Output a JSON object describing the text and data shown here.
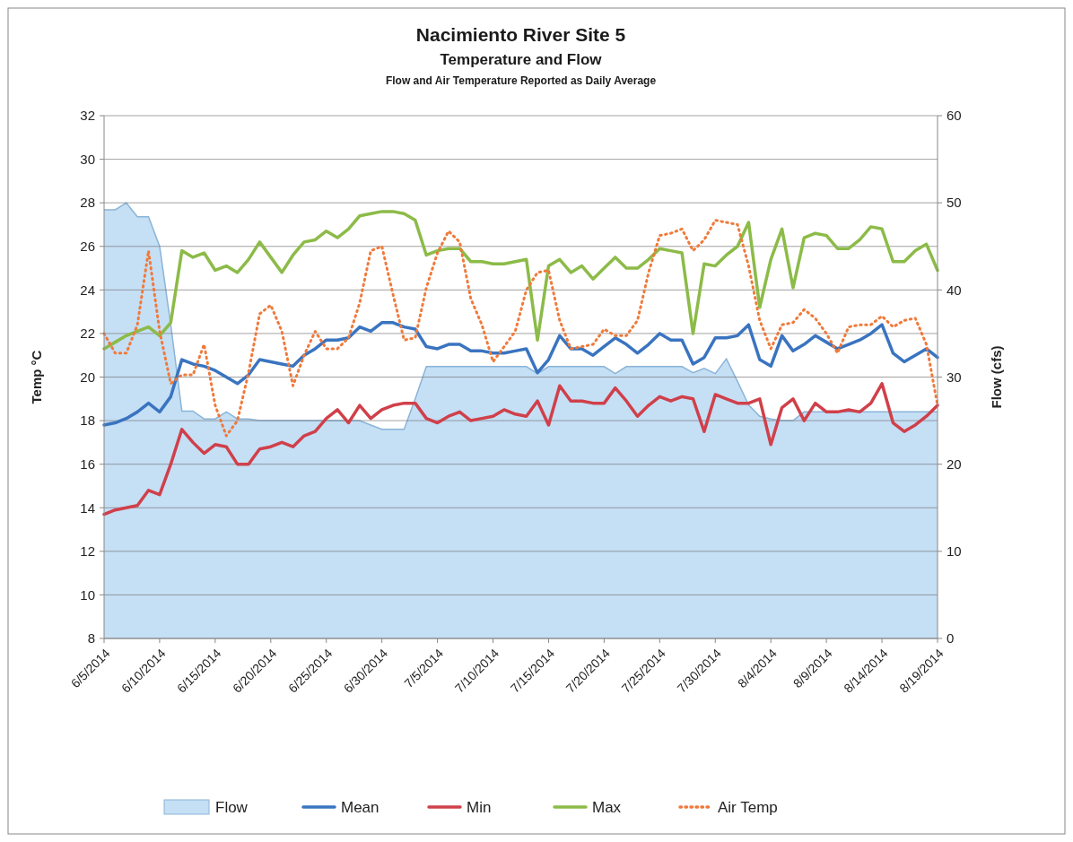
{
  "chart_data": {
    "type": "line",
    "title": "Nacimiento River Site 5",
    "subtitle": "Temperature and Flow",
    "annotations": [
      "Flow and Air Temperature Reported as Daily Average"
    ],
    "ylabel": "Temp °C",
    "y2label": "Flow (cfs)",
    "x": [
      "2014-06-05",
      "2014-06-06",
      "2014-06-07",
      "2014-06-08",
      "2014-06-09",
      "2014-06-10",
      "2014-06-11",
      "2014-06-12",
      "2014-06-13",
      "2014-06-14",
      "2014-06-15",
      "2014-06-16",
      "2014-06-17",
      "2014-06-18",
      "2014-06-19",
      "2014-06-20",
      "2014-06-21",
      "2014-06-22",
      "2014-06-23",
      "2014-06-24",
      "2014-06-25",
      "2014-06-26",
      "2014-06-27",
      "2014-06-28",
      "2014-06-29",
      "2014-06-30",
      "2014-07-01",
      "2014-07-02",
      "2014-07-03",
      "2014-07-04",
      "2014-07-05",
      "2014-07-06",
      "2014-07-07",
      "2014-07-08",
      "2014-07-09",
      "2014-07-10",
      "2014-07-11",
      "2014-07-12",
      "2014-07-13",
      "2014-07-14",
      "2014-07-15",
      "2014-07-16",
      "2014-07-17",
      "2014-07-18",
      "2014-07-19",
      "2014-07-20",
      "2014-07-21",
      "2014-07-22",
      "2014-07-23",
      "2014-07-24",
      "2014-07-25",
      "2014-07-26",
      "2014-07-27",
      "2014-07-28",
      "2014-07-29",
      "2014-07-30",
      "2014-07-31",
      "2014-08-01",
      "2014-08-02",
      "2014-08-03",
      "2014-08-04",
      "2014-08-05",
      "2014-08-06",
      "2014-08-07",
      "2014-08-08",
      "2014-08-09",
      "2014-08-10",
      "2014-08-11",
      "2014-08-12",
      "2014-08-13",
      "2014-08-14",
      "2014-08-15",
      "2014-08-16",
      "2014-08-17",
      "2014-08-18",
      "2014-08-19"
    ],
    "series": [
      {
        "name": "Flow",
        "type": "area",
        "axis": "y2",
        "color": "#c5dff5",
        "values": [
          49.2,
          49.2,
          50,
          48.4,
          48.4,
          45,
          36,
          26.1,
          26.1,
          25.2,
          25.2,
          26,
          25.2,
          25.2,
          25,
          25,
          25,
          25,
          25,
          25,
          25,
          25,
          25,
          25,
          24.5,
          24,
          24,
          24,
          27.5,
          31.2,
          31.2,
          31.2,
          31.2,
          31.2,
          31.2,
          31.2,
          31.2,
          31.2,
          31.2,
          30.4,
          31.2,
          31.2,
          31.2,
          31.2,
          31.2,
          31.2,
          30.4,
          31.2,
          31.2,
          31.2,
          31.2,
          31.2,
          31.2,
          30.5,
          31,
          30.4,
          32.1,
          29.5,
          26.8,
          25.5,
          25.2,
          25,
          25,
          26,
          26,
          26,
          26,
          26,
          26,
          26,
          26,
          26,
          26,
          26,
          26,
          26
        ]
      },
      {
        "name": "Mean",
        "color": "#3a74c0",
        "values": [
          17.8,
          17.9,
          18.1,
          18.4,
          18.8,
          18.4,
          19.1,
          20.8,
          20.6,
          20.5,
          20.3,
          20,
          19.7,
          20.1,
          20.8,
          20.7,
          20.6,
          20.5,
          21,
          21.3,
          21.7,
          21.7,
          21.8,
          22.3,
          22.1,
          22.5,
          22.5,
          22.3,
          22.2,
          21.4,
          21.3,
          21.5,
          21.5,
          21.2,
          21.2,
          21.1,
          21.1,
          21.2,
          21.3,
          20.2,
          20.8,
          21.9,
          21.3,
          21.3,
          21,
          21.4,
          21.8,
          21.5,
          21.1,
          21.5,
          22,
          21.7,
          21.7,
          20.6,
          20.9,
          21.8,
          21.8,
          21.9,
          22.4,
          20.8,
          20.5,
          21.9,
          21.2,
          21.5,
          21.9,
          21.6,
          21.3,
          21.5,
          21.7,
          22,
          22.4,
          21.1,
          20.7,
          21,
          21.3,
          20.9
        ]
      },
      {
        "name": "Min",
        "color": "#d0404a",
        "values": [
          13.7,
          13.9,
          14,
          14.1,
          14.8,
          14.6,
          16,
          17.6,
          17,
          16.5,
          16.9,
          16.8,
          16,
          16,
          16.7,
          16.8,
          17,
          16.8,
          17.3,
          17.5,
          18.1,
          18.5,
          17.9,
          18.7,
          18.1,
          18.5,
          18.7,
          18.8,
          18.8,
          18.1,
          17.9,
          18.2,
          18.4,
          18,
          18.1,
          18.2,
          18.5,
          18.3,
          18.2,
          18.9,
          17.8,
          19.6,
          18.9,
          18.9,
          18.8,
          18.8,
          19.5,
          18.9,
          18.2,
          18.7,
          19.1,
          18.9,
          19.1,
          19,
          17.5,
          19.2,
          19,
          18.8,
          18.8,
          19,
          16.9,
          18.6,
          19,
          18,
          18.8,
          18.4,
          18.4,
          18.5,
          18.4,
          18.8,
          19.7,
          17.9,
          17.5,
          17.8,
          18.2,
          18.7
        ]
      },
      {
        "name": "Max",
        "color": "#8cbb48",
        "values": [
          21.3,
          21.6,
          21.9,
          22.1,
          22.3,
          21.9,
          22.5,
          25.8,
          25.5,
          25.7,
          24.9,
          25.1,
          24.8,
          25.4,
          26.2,
          25.5,
          24.8,
          25.6,
          26.2,
          26.3,
          26.7,
          26.4,
          26.8,
          27.4,
          27.5,
          27.6,
          27.6,
          27.5,
          27.2,
          25.6,
          25.8,
          25.9,
          25.9,
          25.3,
          25.3,
          25.2,
          25.2,
          25.3,
          25.4,
          21.7,
          25.1,
          25.4,
          24.8,
          25.1,
          24.5,
          25,
          25.5,
          25,
          25,
          25.4,
          25.9,
          25.8,
          25.7,
          22,
          25.2,
          25.1,
          25.6,
          26,
          27.1,
          23.2,
          25.4,
          26.8,
          24.1,
          26.4,
          26.6,
          26.5,
          25.9,
          25.9,
          26.3,
          26.9,
          26.8,
          25.3,
          25.3,
          25.8,
          26.1,
          24.9
        ]
      },
      {
        "name": "Air Temp",
        "color": "#f07a3a",
        "line_style": "dotted",
        "values": [
          22,
          21.1,
          21.1,
          22.4,
          25.8,
          22.1,
          19.7,
          20.1,
          20.1,
          21.5,
          18.7,
          17.3,
          18,
          20.2,
          22.9,
          23.3,
          22.1,
          19.6,
          21,
          22.1,
          21.3,
          21.3,
          21.8,
          23.4,
          25.8,
          26,
          23.8,
          21.7,
          21.8,
          24.1,
          25.7,
          26.7,
          26.2,
          23.6,
          22.4,
          20.7,
          21.4,
          22.1,
          24,
          24.8,
          24.9,
          22.6,
          21.3,
          21.4,
          21.5,
          22.2,
          21.9,
          21.9,
          22.6,
          24.8,
          26.5,
          26.6,
          26.8,
          25.8,
          26.3,
          27.2,
          27.1,
          27,
          25.1,
          22.6,
          21.3,
          22.4,
          22.5,
          23.1,
          22.7,
          22,
          21.1,
          22.3,
          22.4,
          22.4,
          22.8,
          22.3,
          22.6,
          22.7,
          21.5,
          18.7
        ]
      }
    ],
    "xlim": [
      "2014-06-05",
      "2014-08-19"
    ],
    "xticks": [
      {
        "value": "2014-06-05",
        "label": "6/5/2014"
      },
      {
        "value": "2014-06-10",
        "label": "6/10/2014"
      },
      {
        "value": "2014-06-15",
        "label": "6/15/2014"
      },
      {
        "value": "2014-06-20",
        "label": "6/20/2014"
      },
      {
        "value": "2014-06-25",
        "label": "6/25/2014"
      },
      {
        "value": "2014-06-30",
        "label": "6/30/2014"
      },
      {
        "value": "2014-07-05",
        "label": "7/5/2014"
      },
      {
        "value": "2014-07-10",
        "label": "7/10/2014"
      },
      {
        "value": "2014-07-15",
        "label": "7/15/2014"
      },
      {
        "value": "2014-07-20",
        "label": "7/20/2014"
      },
      {
        "value": "2014-07-25",
        "label": "7/25/2014"
      },
      {
        "value": "2014-07-30",
        "label": "7/30/2014"
      },
      {
        "value": "2014-08-04",
        "label": "8/4/2014"
      },
      {
        "value": "2014-08-09",
        "label": "8/9/2014"
      },
      {
        "value": "2014-08-14",
        "label": "8/14/2014"
      },
      {
        "value": "2014-08-19",
        "label": "8/19/2014"
      }
    ],
    "ylim": [
      8,
      32
    ],
    "yticks": [
      8,
      10,
      12,
      14,
      16,
      18,
      20,
      22,
      24,
      26,
      28,
      30,
      32
    ],
    "y2lim": [
      0,
      60
    ],
    "y2ticks": [
      0,
      10,
      20,
      30,
      40,
      50,
      60
    ],
    "grid": "y",
    "legend": "bottom"
  }
}
